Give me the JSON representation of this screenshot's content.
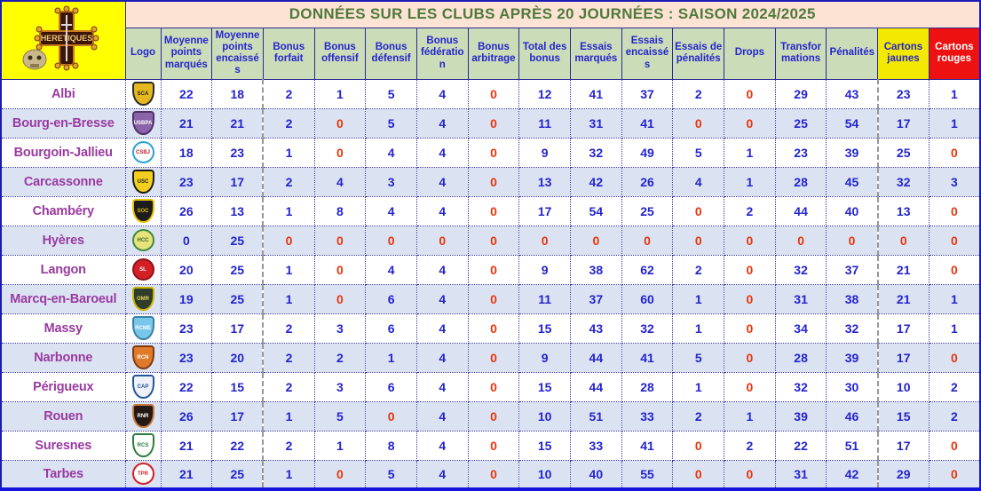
{
  "title": "DONNÉES SUR LES CLUBS APRÈS 20 JOURNÉES : SAISON 2024/2025",
  "corner_logo": {
    "label": "HERETIQUES"
  },
  "colors": {
    "title_bg": "#fce3d4",
    "title_text": "#4e7a3c",
    "header_bg": "#cbdcb8",
    "header_text": "#2525cc",
    "yellow_card_bg": "#f2e800",
    "red_card_bg": "#ee1111",
    "number_blue": "#2424cf",
    "zero_red": "#e8360d",
    "club_purple": "#9a3aa0",
    "row_alt_bg": "#dbe3f2",
    "corner_bg": "#ffff00",
    "outer_border_blue": "#1414dc"
  },
  "chart_data": {
    "type": "table",
    "title": "DONNÉES SUR LES CLUBS APRÈS 20 JOURNÉES : SAISON 2024/2025",
    "columns": [
      {
        "label": "Logo"
      },
      {
        "label": "Moyenne points marqués"
      },
      {
        "label": "Moyenne points encaissés"
      },
      {
        "label": "Bonus forfait"
      },
      {
        "label": "Bonus offensif"
      },
      {
        "label": "Bonus défensif"
      },
      {
        "label": "Bonus fédération"
      },
      {
        "label": "Bonus arbitrage"
      },
      {
        "label": "Total des bonus"
      },
      {
        "label": "Essais marqués"
      },
      {
        "label": "Essais encaissés"
      },
      {
        "label": "Essais de pénalités"
      },
      {
        "label": "Drops"
      },
      {
        "label": "Transformations"
      },
      {
        "label": "Pénalités"
      },
      {
        "label": "Cartons jaunes",
        "bg": "#f2e800",
        "fg": "#2525cc"
      },
      {
        "label": "Cartons rouges",
        "bg": "#ee1111",
        "fg": "#ffffff"
      }
    ],
    "rows": [
      {
        "club": "Albi",
        "values": [
          22,
          18,
          2,
          1,
          5,
          4,
          0,
          12,
          41,
          37,
          2,
          0,
          29,
          43,
          23,
          1
        ],
        "logo": {
          "shape": "shield",
          "bg": "#e6b820",
          "border": "#2a2a2a",
          "fg": "#1a1a1a",
          "text": "SCA"
        }
      },
      {
        "club": "Bourg-en-Bresse",
        "values": [
          21,
          21,
          2,
          0,
          5,
          4,
          0,
          11,
          31,
          41,
          0,
          0,
          25,
          54,
          17,
          1
        ],
        "logo": {
          "shape": "shield",
          "bg": "#8a63a8",
          "border": "#50306b",
          "fg": "#ffffff",
          "text": "USBPA"
        }
      },
      {
        "club": "Bourgoin-Jallieu",
        "values": [
          18,
          23,
          1,
          0,
          4,
          4,
          0,
          9,
          32,
          49,
          5,
          1,
          23,
          39,
          25,
          0
        ],
        "logo": {
          "shape": "circle",
          "bg": "#ffffff",
          "border": "#2ba3d4",
          "fg": "#c02030",
          "text": "CSBJ"
        }
      },
      {
        "club": "Carcassonne",
        "values": [
          23,
          17,
          2,
          4,
          3,
          4,
          0,
          13,
          42,
          26,
          4,
          1,
          28,
          45,
          32,
          3
        ],
        "logo": {
          "shape": "shield",
          "bg": "#f2cf1d",
          "border": "#1a1a1a",
          "fg": "#1a1a1a",
          "text": "USC"
        }
      },
      {
        "club": "Chambéry",
        "values": [
          26,
          13,
          1,
          8,
          4,
          4,
          0,
          17,
          54,
          25,
          0,
          2,
          44,
          40,
          13,
          0
        ],
        "logo": {
          "shape": "shield",
          "bg": "#1c1c1c",
          "border": "#e5c100",
          "fg": "#e5c100",
          "text": "SOC"
        }
      },
      {
        "club": "Hyères",
        "values": [
          0,
          25,
          0,
          0,
          0,
          0,
          0,
          0,
          0,
          0,
          0,
          0,
          0,
          0,
          0,
          0
        ],
        "logo": {
          "shape": "circle",
          "bg": "#e8e27a",
          "border": "#3f8a3f",
          "fg": "#2f6b2f",
          "text": "HCC"
        }
      },
      {
        "club": "Langon",
        "values": [
          20,
          25,
          1,
          0,
          4,
          4,
          0,
          9,
          38,
          62,
          2,
          0,
          32,
          37,
          21,
          0
        ],
        "logo": {
          "shape": "circle",
          "bg": "#d41f26",
          "border": "#8f1318",
          "fg": "#ffffff",
          "text": "SL"
        }
      },
      {
        "club": "Marcq-en-Baroeul",
        "values": [
          19,
          25,
          1,
          0,
          6,
          4,
          0,
          11,
          37,
          60,
          1,
          0,
          31,
          38,
          21,
          1
        ],
        "logo": {
          "shape": "shield",
          "bg": "#2f3d2a",
          "border": "#c8b400",
          "fg": "#e7d75a",
          "text": "OMR"
        }
      },
      {
        "club": "Massy",
        "values": [
          23,
          17,
          2,
          3,
          6,
          4,
          0,
          15,
          43,
          32,
          1,
          0,
          34,
          32,
          17,
          1
        ],
        "logo": {
          "shape": "shield",
          "bg": "#79c7e8",
          "border": "#3a7fa8",
          "fg": "#ffffff",
          "text": "RCME"
        }
      },
      {
        "club": "Narbonne",
        "values": [
          23,
          20,
          2,
          2,
          1,
          4,
          0,
          9,
          44,
          41,
          5,
          0,
          28,
          39,
          17,
          0
        ],
        "logo": {
          "shape": "shield",
          "bg": "#e07a28",
          "border": "#7a3c14",
          "fg": "#ffffff",
          "text": "RCN"
        }
      },
      {
        "club": "Périgueux",
        "values": [
          22,
          15,
          2,
          3,
          6,
          4,
          0,
          15,
          44,
          28,
          1,
          0,
          32,
          30,
          10,
          2
        ],
        "logo": {
          "shape": "shield",
          "bg": "#eef2f8",
          "border": "#24549c",
          "fg": "#24549c",
          "text": "CAP"
        }
      },
      {
        "club": "Rouen",
        "values": [
          26,
          17,
          1,
          5,
          0,
          4,
          0,
          10,
          51,
          33,
          2,
          1,
          39,
          46,
          15,
          2
        ],
        "logo": {
          "shape": "shield",
          "bg": "#241a14",
          "border": "#c8793c",
          "fg": "#ffffff",
          "text": "RNR"
        }
      },
      {
        "club": "Suresnes",
        "values": [
          21,
          22,
          2,
          1,
          8,
          4,
          0,
          15,
          33,
          41,
          0,
          2,
          22,
          51,
          17,
          0
        ],
        "logo": {
          "shape": "shield",
          "bg": "#ffffff",
          "border": "#2e7d3e",
          "fg": "#2e7d3e",
          "text": "RCS"
        }
      },
      {
        "club": "Tarbes",
        "values": [
          21,
          25,
          1,
          0,
          5,
          4,
          0,
          10,
          40,
          55,
          0,
          0,
          31,
          42,
          29,
          0
        ],
        "logo": {
          "shape": "circle",
          "bg": "#ffffff",
          "border": "#d42028",
          "fg": "#d42028",
          "text": "TPR"
        }
      }
    ]
  }
}
